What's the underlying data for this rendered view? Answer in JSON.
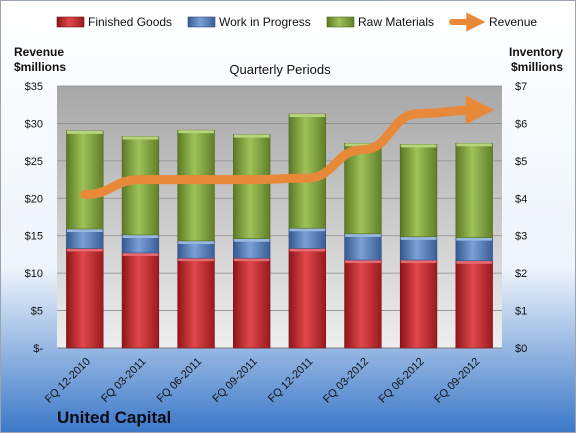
{
  "company": "United Capital",
  "chart_data": {
    "type": "bar",
    "subtitle": "Quarterly Periods",
    "left_axis": {
      "label_line1": "Revenue",
      "label_line2": "$millions",
      "ylim": [
        0,
        35
      ],
      "ticks": [
        "$-",
        "$5",
        "$10",
        "$15",
        "$20",
        "$25",
        "$30",
        "$35"
      ]
    },
    "right_axis": {
      "label_line1": "Inventory",
      "label_line2": "$millions",
      "ylim": [
        0,
        7
      ],
      "ticks": [
        "$0",
        "$1",
        "$2",
        "$3",
        "$4",
        "$5",
        "$6",
        "$7"
      ]
    },
    "categories": [
      "FQ 12-2010",
      "FQ 03-2011",
      "FQ 06-2011",
      "FQ 09-2011",
      "FQ 12-2011",
      "FQ 03-2012",
      "FQ 06-2012",
      "FQ 09-2012"
    ],
    "stacked_axis": "right",
    "series": [
      {
        "name": "Finished Goods",
        "kind": "bar",
        "color": "#c0262c",
        "values": [
          2.66,
          2.54,
          2.4,
          2.4,
          2.66,
          2.35,
          2.35,
          2.33
        ]
      },
      {
        "name": "Work in Progress",
        "kind": "bar",
        "color": "#4e78b8",
        "values": [
          0.52,
          0.48,
          0.46,
          0.52,
          0.54,
          0.7,
          0.62,
          0.62
        ]
      },
      {
        "name": "Raw Materials",
        "kind": "bar",
        "color": "#7ea03a",
        "values": [
          2.62,
          2.63,
          2.96,
          2.78,
          3.05,
          2.42,
          2.47,
          2.52
        ]
      },
      {
        "name": "Revenue",
        "kind": "line",
        "axis": "left",
        "color": "#e8893a",
        "values": [
          20.5,
          22.5,
          22.5,
          22.5,
          22.7,
          26.5,
          31.3,
          31.8
        ]
      }
    ],
    "legend_position": "top",
    "grid": true
  }
}
